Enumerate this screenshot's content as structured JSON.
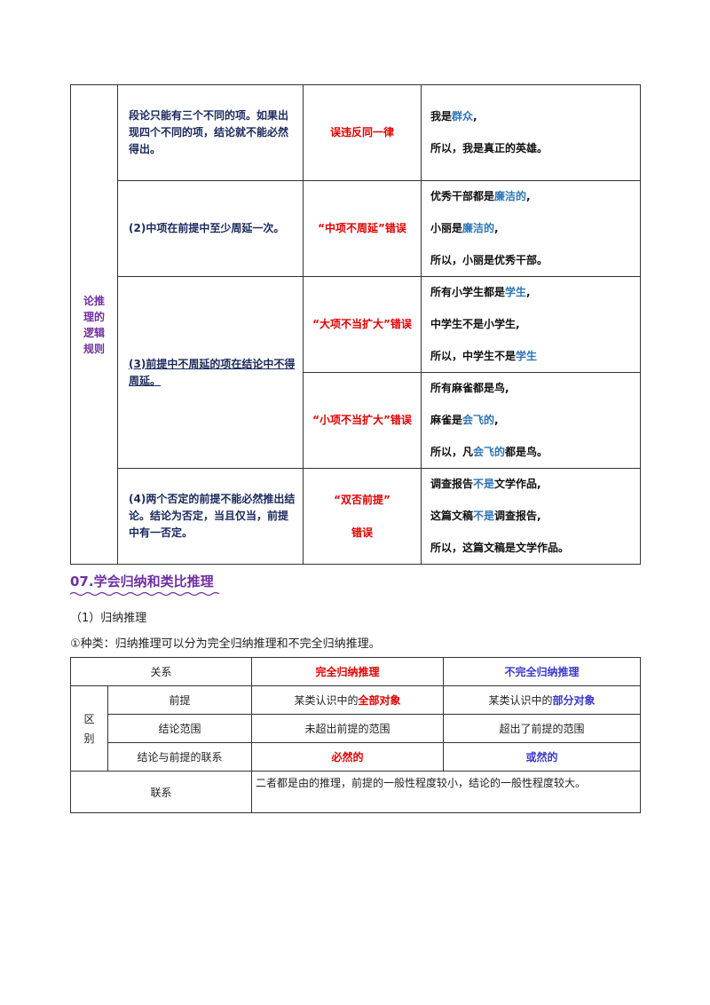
{
  "table1": {
    "side_label": [
      "论推",
      "理的",
      "逻辑",
      "规则"
    ],
    "rows": [
      {
        "rule": "段论只能有三个不同的项。如果出现四个不同的项，结论就不能必然得出。",
        "error": "误违反同一律",
        "example": [
          {
            "parts": [
              {
                "t": "我是"
              },
              {
                "t": "群众",
                "c": "blue"
              },
              {
                "t": ","
              }
            ]
          },
          {
            "parts": [
              {
                "t": "所以，我是真正的英雄。"
              }
            ]
          }
        ]
      },
      {
        "rule": "(2)中项在前提中至少周延一次。",
        "error": "“中项不周延”错误",
        "example": [
          {
            "parts": [
              {
                "t": "优秀干部都是"
              },
              {
                "t": "廉洁的",
                "c": "blue"
              },
              {
                "t": ","
              }
            ]
          },
          {
            "parts": [
              {
                "t": "小丽是"
              },
              {
                "t": "廉洁的",
                "c": "blue"
              },
              {
                "t": ","
              }
            ]
          },
          {
            "parts": [
              {
                "t": "所以，小丽是优秀干部。"
              }
            ]
          }
        ]
      },
      {
        "rule": "(3)前提中不周延的项在结论中不得周延。",
        "error": "“大项不当扩大”错误",
        "example": [
          {
            "parts": [
              {
                "t": "所有小学生都是"
              },
              {
                "t": "学生",
                "c": "blue"
              },
              {
                "t": ","
              }
            ]
          },
          {
            "parts": [
              {
                "t": "中学生不是小学生,"
              }
            ]
          },
          {
            "parts": [
              {
                "t": "所以，中学生不是"
              },
              {
                "t": "学生",
                "c": "blue"
              }
            ]
          }
        ]
      },
      {
        "error": "“小项不当扩大”错误",
        "example": [
          {
            "parts": [
              {
                "t": "所有麻雀都是鸟,"
              }
            ]
          },
          {
            "parts": [
              {
                "t": "麻雀是"
              },
              {
                "t": "会飞的",
                "c": "blue"
              },
              {
                "t": ","
              }
            ]
          },
          {
            "parts": [
              {
                "t": "所以，凡"
              },
              {
                "t": "会飞的",
                "c": "blue"
              },
              {
                "t": "都是鸟。"
              }
            ]
          }
        ]
      },
      {
        "rule": "(4)两个否定的前提不能必然推出结论。结论为否定，当且仅当，前提中有一否定。",
        "error_line1": "“双否前提”",
        "error_line2": "错误",
        "example": [
          {
            "parts": [
              {
                "t": "调查报告"
              },
              {
                "t": "不是",
                "c": "blue"
              },
              {
                "t": "文学作品,"
              }
            ]
          },
          {
            "parts": [
              {
                "t": "这篇文稿"
              },
              {
                "t": "不是",
                "c": "blue"
              },
              {
                "t": "调查报告,"
              }
            ]
          },
          {
            "parts": [
              {
                "t": "所以，这篇文稿是文学作品。"
              }
            ]
          }
        ]
      }
    ]
  },
  "section": {
    "heading": "07.学会归纳和类比推理",
    "sub": "（1）归纳推理",
    "kinds": "①种类：归纳推理可以分为完全归纳推理和不完全归纳推理。"
  },
  "table2": {
    "header": {
      "relation": "关系",
      "complete": "完全归纳推理",
      "incomplete": "不完全归纳推理"
    },
    "diff_label": "区别",
    "rows": [
      {
        "label": "前提",
        "complete_pre": "某类认识中的",
        "complete_key": "全部对象",
        "incomplete_pre": "某类认识中的",
        "incomplete_key": "部分对象"
      },
      {
        "label": "结论范围",
        "complete": "未超出前提的范围",
        "incomplete": "超出了前提的范围"
      },
      {
        "label": "结论与前提的联系",
        "complete": "必然的",
        "incomplete": "或然的"
      }
    ],
    "link_label": "联系",
    "link_text": "二者都是由的推理，前提的一般性程度较小，结论的一般性程度较大。"
  }
}
